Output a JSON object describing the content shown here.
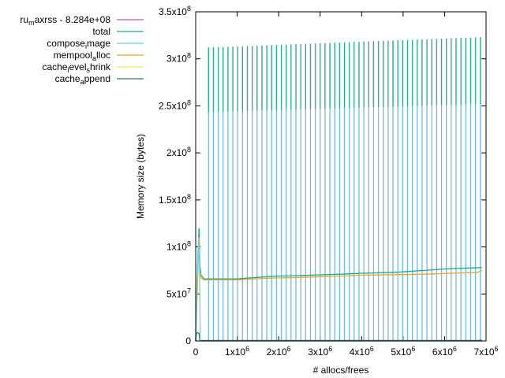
{
  "chart_data": {
    "type": "line",
    "title": "",
    "xlabel": "# allocs/frees",
    "ylabel": "Memory size (bytes)",
    "xlim": [
      0,
      7000000
    ],
    "ylim": [
      0,
      350000000
    ],
    "x_ticks": [
      {
        "v": 0,
        "label": "0",
        "exp": ""
      },
      {
        "v": 1000000,
        "label": "1x10",
        "exp": "6"
      },
      {
        "v": 2000000,
        "label": "2x10",
        "exp": "6"
      },
      {
        "v": 3000000,
        "label": "3x10",
        "exp": "6"
      },
      {
        "v": 4000000,
        "label": "4x10",
        "exp": "6"
      },
      {
        "v": 5000000,
        "label": "5x10",
        "exp": "6"
      },
      {
        "v": 6000000,
        "label": "6x10",
        "exp": "6"
      },
      {
        "v": 7000000,
        "label": "7x10",
        "exp": "6"
      }
    ],
    "y_ticks": [
      {
        "v": 0,
        "label": "0",
        "exp": ""
      },
      {
        "v": 50000000,
        "label": "5x10",
        "exp": "7"
      },
      {
        "v": 100000000,
        "label": "1x10",
        "exp": "8"
      },
      {
        "v": 150000000,
        "label": "1.5x10",
        "exp": "8"
      },
      {
        "v": 200000000,
        "label": "2x10",
        "exp": "8"
      },
      {
        "v": 250000000,
        "label": "2.5x10",
        "exp": "8"
      },
      {
        "v": 300000000,
        "label": "3x10",
        "exp": "8"
      },
      {
        "v": 350000000,
        "label": "3.5x10",
        "exp": "8"
      }
    ],
    "legend_position": "top-left, outside plot",
    "legend": [
      {
        "parts": [
          {
            "t": "ru",
            "s": ""
          },
          {
            "t": "m",
            "s": "sub"
          },
          {
            "t": "axrss - 8.284e+08",
            "s": ""
          }
        ],
        "color": "#c050d0"
      },
      {
        "parts": [
          {
            "t": "total",
            "s": ""
          }
        ],
        "color": "#1aaa8a"
      },
      {
        "parts": [
          {
            "t": "compose",
            "s": ""
          },
          {
            "t": "i",
            "s": "sub"
          },
          {
            "t": "mage",
            "s": ""
          }
        ],
        "color": "#6ccfdc"
      },
      {
        "parts": [
          {
            "t": "mempool",
            "s": ""
          },
          {
            "t": "a",
            "s": "sub"
          },
          {
            "t": "lloc",
            "s": ""
          }
        ],
        "color": "#e8a820"
      },
      {
        "parts": [
          {
            "t": "cache",
            "s": ""
          },
          {
            "t": "l",
            "s": "sub"
          },
          {
            "t": "evel",
            "s": ""
          },
          {
            "t": "s",
            "s": "sub"
          },
          {
            "t": "hrink",
            "s": ""
          }
        ],
        "color": "#f0e850"
      },
      {
        "parts": [
          {
            "t": "cache",
            "s": ""
          },
          {
            "t": "a",
            "s": "sub"
          },
          {
            "t": "ppend",
            "s": ""
          }
        ],
        "color": "#2a7a5a"
      }
    ],
    "spikes": {
      "name": "total",
      "color": "#1aaa8a",
      "peak_color": "#2db090",
      "x_start": 310000,
      "x_step": 117000,
      "x_end": 6900000,
      "peak_start": 312000000,
      "peak_end": 323000000
    },
    "series": [
      {
        "name": "total",
        "color": "#1aaa8a",
        "x": [
          0,
          20000,
          50000,
          80000,
          100000,
          130000,
          200000,
          1000000,
          1600000,
          2000000,
          2800000,
          3500000,
          4000000,
          4800000,
          5500000,
          6200000,
          6900000
        ],
        "y": [
          0,
          40000000,
          85000000,
          120000000,
          80000000,
          70000000,
          66000000,
          66000000,
          68000000,
          69000000,
          70000000,
          71000000,
          72000000,
          73000000,
          75000000,
          77000000,
          78000000
        ]
      },
      {
        "name": "mempool_alloc",
        "color": "#e8a820",
        "x": [
          0,
          20000,
          50000,
          80000,
          100000,
          130000,
          200000,
          1000000,
          1600000,
          2000000,
          2800000,
          3500000,
          4000000,
          4800000,
          5500000,
          6200000,
          6800000,
          6900000
        ],
        "y": [
          0,
          30000000,
          70000000,
          110000000,
          75000000,
          67000000,
          65000000,
          65000000,
          66500000,
          67000000,
          68000000,
          69000000,
          70000000,
          70500000,
          71000000,
          72000000,
          73000000,
          75000000
        ]
      },
      {
        "name": "cache_append",
        "color": "#2a7a5a",
        "x": [
          0,
          20000,
          40000,
          80000,
          100000,
          6800000,
          6900000
        ],
        "y": [
          0,
          8000000,
          9000000,
          8000000,
          500000,
          500000,
          1000000
        ]
      },
      {
        "name": "compose_image",
        "color": "#6ccfdc",
        "x": [
          0,
          30000,
          70000,
          90000,
          110000
        ],
        "y": [
          0,
          60000000,
          110000000,
          90000000,
          0
        ]
      }
    ]
  }
}
